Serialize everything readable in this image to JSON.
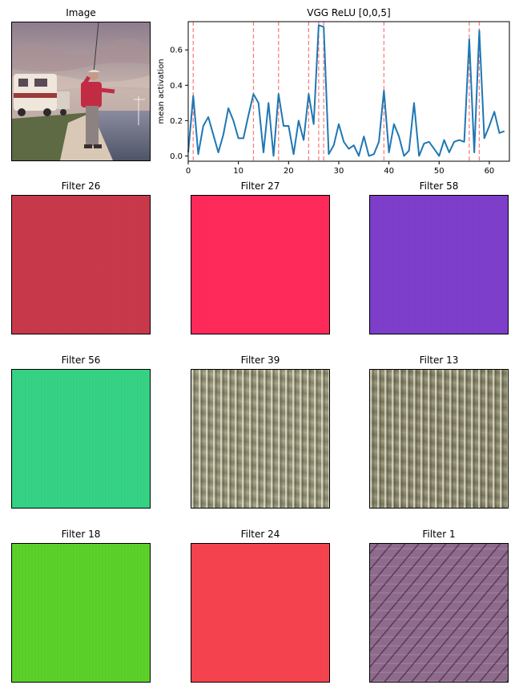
{
  "photo_panel": {
    "title": "Image"
  },
  "chart_data": {
    "type": "line",
    "title": "VGG ReLU [0,0,5]",
    "xlabel": "",
    "ylabel": "mean activation",
    "xlim": [
      0,
      64
    ],
    "ylim": [
      -0.03,
      0.76
    ],
    "xticks": [
      0,
      10,
      20,
      30,
      40,
      50,
      60
    ],
    "yticks": [
      0.0,
      0.2,
      0.4,
      0.6
    ],
    "ytick_labels": [
      "0.0",
      "0.2",
      "0.4",
      "0.6"
    ],
    "grid": false,
    "line_color": "#1f77b4",
    "highlight_color": "#ff7f7f",
    "highlight_x": [
      1,
      13,
      18,
      24,
      26,
      27,
      39,
      56,
      58
    ],
    "series": [
      {
        "values": [
          0.02,
          0.34,
          0.01,
          0.17,
          0.22,
          0.12,
          0.02,
          0.12,
          0.27,
          0.2,
          0.1,
          0.1,
          0.23,
          0.35,
          0.3,
          0.02,
          0.3,
          0.0,
          0.35,
          0.17,
          0.17,
          0.01,
          0.2,
          0.09,
          0.35,
          0.18,
          0.74,
          0.73,
          0.01,
          0.06,
          0.18,
          0.08,
          0.04,
          0.06,
          0.0,
          0.11,
          0.0,
          0.01,
          0.08,
          0.37,
          0.02,
          0.18,
          0.11,
          0.0,
          0.03,
          0.3,
          0.0,
          0.07,
          0.08,
          0.04,
          0.0,
          0.09,
          0.02,
          0.08,
          0.09,
          0.08,
          0.66,
          0.02,
          0.71,
          0.1,
          0.17,
          0.25,
          0.13,
          0.14
        ]
      }
    ]
  },
  "filters": [
    {
      "title": "Filter 26",
      "color": "#c9394b",
      "texture": "flat"
    },
    {
      "title": "Filter 27",
      "color": "#ff2a5a",
      "texture": "flat"
    },
    {
      "title": "Filter 58",
      "color": "#7e3ecb",
      "texture": "flat"
    },
    {
      "title": "Filter 56",
      "color": "#36d385",
      "texture": "flat"
    },
    {
      "title": "Filter 39",
      "color": "#9b9a79",
      "texture": "vertical-ridges"
    },
    {
      "title": "Filter 13",
      "color": "#8f8d6d",
      "texture": "vertical-ridges"
    },
    {
      "title": "Filter 18",
      "color": "#5cd12a",
      "texture": "flat"
    },
    {
      "title": "Filter 24",
      "color": "#f6434f",
      "texture": "flat"
    },
    {
      "title": "Filter 1",
      "color": "#8e6a8c",
      "texture": "diagonal-ridges"
    }
  ]
}
